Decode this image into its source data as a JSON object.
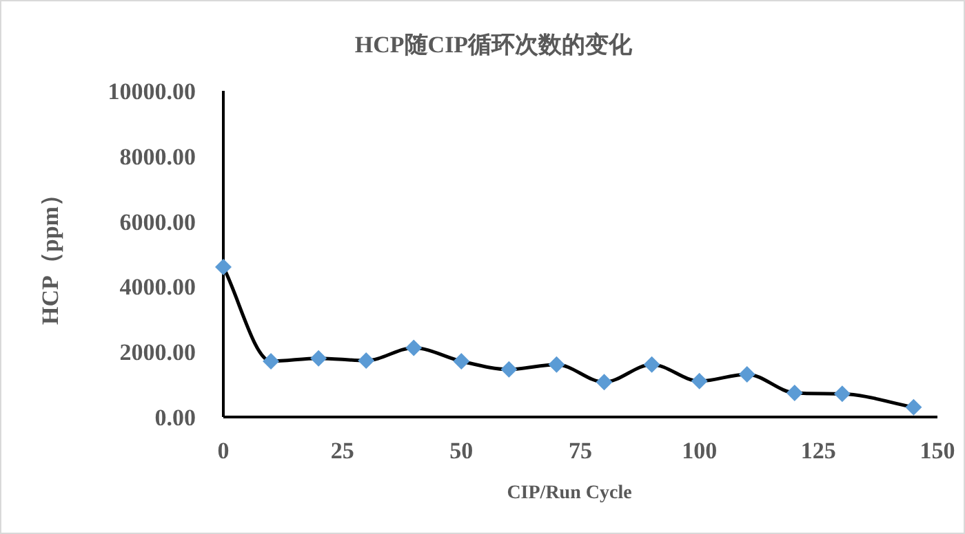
{
  "chart_data": {
    "type": "line",
    "title": "HCP随CIP循环次数的变化",
    "xlabel": "CIP/Run Cycle",
    "ylabel": "HCP（ppm）",
    "x": [
      0,
      10,
      20,
      30,
      40,
      50,
      60,
      70,
      80,
      90,
      100,
      110,
      120,
      130,
      145
    ],
    "series": [
      {
        "color": "#5b9bd5",
        "values": [
          4600,
          1710,
          1800,
          1730,
          2120,
          1710,
          1460,
          1610,
          1070,
          1610,
          1100,
          1310,
          740,
          710,
          300
        ]
      }
    ],
    "xlim": [
      0,
      150
    ],
    "xticks": [
      0,
      25,
      50,
      75,
      100,
      125,
      150
    ],
    "ylim": [
      0,
      10000
    ],
    "yticks": [
      {
        "value": 0,
        "label": "0.00"
      },
      {
        "value": 2000,
        "label": "2000.00"
      },
      {
        "value": 4000,
        "label": "4000.00"
      },
      {
        "value": 6000,
        "label": "6000.00"
      },
      {
        "value": 8000,
        "label": "8000.00"
      },
      {
        "value": 10000,
        "label": "10000.00"
      }
    ],
    "marker": "diamond",
    "line_style": "solid"
  }
}
